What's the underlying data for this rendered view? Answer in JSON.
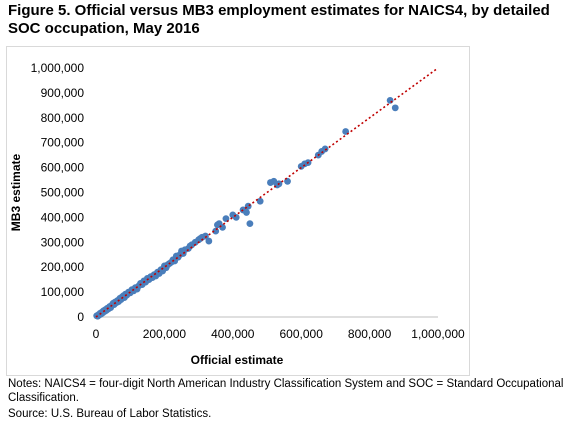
{
  "figure": {
    "title": "Figure 5. Official versus MB3 employment estimates for NAICS4, by detailed SOC occupation, May 2016",
    "notes": "Notes: NAICS4 = four-digit North American Industry Classification System and SOC = Standard Occupational Classification.",
    "source": "Source: U.S. Bureau of Labor Statistics."
  },
  "chart_data": {
    "type": "scatter",
    "title": "Figure 5. Official versus MB3 employment estimates for NAICS4, by detailed SOC occupation, May 2016",
    "xlabel": "Official estimate",
    "ylabel": "MB3 estimate",
    "xlim": [
      0,
      1000000
    ],
    "ylim": [
      0,
      1000000
    ],
    "x_ticks": [
      0,
      200000,
      400000,
      600000,
      800000,
      1000000
    ],
    "x_tick_labels": [
      "0",
      "200,000",
      "400,000",
      "600,000",
      "800,000",
      "1,000,000"
    ],
    "y_ticks": [
      0,
      100000,
      200000,
      300000,
      400000,
      500000,
      600000,
      700000,
      800000,
      900000,
      1000000
    ],
    "y_tick_labels": [
      "0",
      "100,000",
      "200,000",
      "300,000",
      "400,000",
      "500,000",
      "600,000",
      "700,000",
      "800,000",
      "900,000",
      "1,000,000"
    ],
    "grid": false,
    "legend": "none",
    "point_color": "#4a7ebb",
    "trendline": {
      "style": "dotted",
      "color": "#c00000",
      "from": [
        0,
        0
      ],
      "to": [
        1000000,
        1000000
      ]
    },
    "points": {
      "x": [
        2000,
        5000,
        8000,
        10000,
        12000,
        15000,
        18000,
        20000,
        22000,
        25000,
        28000,
        30000,
        33000,
        36000,
        40000,
        43000,
        46000,
        50000,
        53000,
        56000,
        60000,
        63000,
        66000,
        70000,
        73000,
        76000,
        80000,
        83000,
        86000,
        90000,
        95000,
        100000,
        105000,
        110000,
        115000,
        120000,
        125000,
        130000,
        135000,
        140000,
        145000,
        150000,
        155000,
        160000,
        165000,
        170000,
        175000,
        180000,
        185000,
        190000,
        195000,
        200000,
        205000,
        210000,
        215000,
        220000,
        225000,
        230000,
        235000,
        240000,
        245000,
        250000,
        255000,
        260000,
        270000,
        275000,
        280000,
        290000,
        300000,
        305000,
        310000,
        320000,
        330000,
        350000,
        355000,
        360000,
        370000,
        380000,
        400000,
        410000,
        430000,
        440000,
        445000,
        450000,
        480000,
        510000,
        520000,
        530000,
        535000,
        560000,
        600000,
        610000,
        620000,
        650000,
        660000,
        670000,
        730000,
        860000,
        875000
      ],
      "y": [
        5000,
        3000,
        10000,
        8000,
        15000,
        12000,
        20000,
        17000,
        25000,
        22000,
        30000,
        26000,
        35000,
        32000,
        42000,
        38000,
        47000,
        55000,
        50000,
        60000,
        58000,
        66000,
        62000,
        75000,
        70000,
        80000,
        85000,
        78000,
        92000,
        88000,
        100000,
        97000,
        110000,
        105000,
        118000,
        112000,
        125000,
        135000,
        130000,
        145000,
        140000,
        155000,
        150000,
        162000,
        158000,
        170000,
        165000,
        180000,
        175000,
        190000,
        185000,
        205000,
        198000,
        210000,
        215000,
        220000,
        230000,
        225000,
        245000,
        240000,
        250000,
        265000,
        255000,
        270000,
        275000,
        285000,
        290000,
        300000,
        310000,
        315000,
        320000,
        325000,
        305000,
        345000,
        370000,
        375000,
        360000,
        395000,
        410000,
        400000,
        430000,
        420000,
        445000,
        375000,
        465000,
        540000,
        545000,
        530000,
        535000,
        545000,
        605000,
        615000,
        620000,
        650000,
        665000,
        675000,
        745000,
        870000,
        840000
      ]
    }
  }
}
